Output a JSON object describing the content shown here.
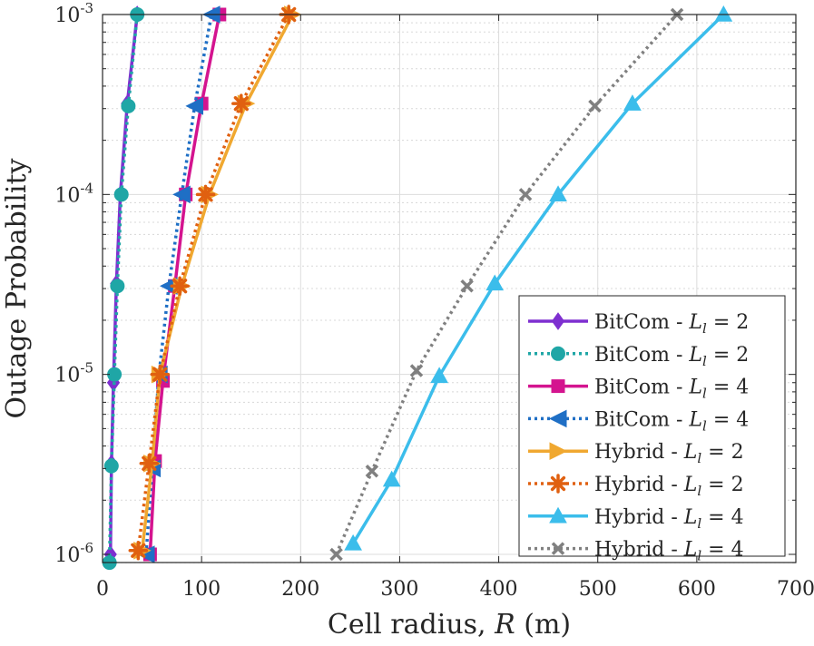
{
  "chart_data": {
    "type": "line",
    "title": "",
    "xlabel": {
      "main": "Cell radius,",
      "var": "R",
      "unit": "(m)"
    },
    "ylabel": "Outage Probability",
    "xlim": [
      0,
      700
    ],
    "ylim": [
      8.5e-07,
      0.001
    ],
    "yscale": "log",
    "grid": true,
    "legend_position": "bottom-right",
    "xticks": [
      0,
      100,
      200,
      300,
      400,
      500,
      600,
      700
    ],
    "yticks": [
      {
        "value": 1e-06,
        "exp": "-6"
      },
      {
        "value": 1e-05,
        "exp": "-5"
      },
      {
        "value": 0.0001,
        "exp": "-4"
      },
      {
        "value": 0.001,
        "exp": "-3"
      }
    ],
    "series": [
      {
        "name": "BitCom - ",
        "math": "L",
        "sub": "l",
        "eq": " = 2",
        "color": "#7E2FD0",
        "style": "solid",
        "marker": "diamond",
        "x": [
          8,
          9,
          11,
          14,
          18,
          25,
          35
        ],
        "y": [
          1e-06,
          3.2e-06,
          9e-06,
          3.2e-05,
          0.0001,
          0.00032,
          0.001
        ]
      },
      {
        "name": "BitCom - ",
        "math": "L",
        "sub": "l",
        "eq": " = 2",
        "color": "#1FA6A6",
        "style": "dotted",
        "marker": "circle",
        "x": [
          7,
          9,
          12,
          15,
          19,
          26,
          35
        ],
        "y": [
          9e-07,
          3.1e-06,
          1e-05,
          3.1e-05,
          0.0001,
          0.00031,
          0.001
        ]
      },
      {
        "name": "BitCom - ",
        "math": "L",
        "sub": "l",
        "eq": " = 4",
        "color": "#D4148F",
        "style": "solid",
        "marker": "square",
        "x": [
          48,
          53,
          61,
          73,
          84,
          100,
          118
        ],
        "y": [
          1e-06,
          3.3e-06,
          9.2e-06,
          3.1e-05,
          0.0001,
          0.00032,
          0.001
        ]
      },
      {
        "name": "BitCom - ",
        "math": "L",
        "sub": "l",
        "eq": " = 4",
        "color": "#1F6FC5",
        "style": "dotted",
        "marker": "triangle-left",
        "x": [
          44,
          50,
          57,
          67,
          80,
          93,
          110
        ],
        "y": [
          1e-06,
          3e-06,
          1e-05,
          3.1e-05,
          0.0001,
          0.00031,
          0.001
        ]
      },
      {
        "name": "Hybrid - ",
        "math": "L",
        "sub": "l",
        "eq": " = 2",
        "color": "#F0A830",
        "style": "solid",
        "marker": "triangle-right",
        "x": [
          40,
          50,
          58,
          80,
          108,
          145,
          192
        ],
        "y": [
          1.05e-06,
          3.2e-06,
          1e-05,
          3.1e-05,
          0.0001,
          0.00032,
          0.001
        ]
      },
      {
        "name": "Hybrid - ",
        "math": "L",
        "sub": "l",
        "eq": " = 2",
        "color": "#E06010",
        "style": "dotted",
        "marker": "asterisk",
        "x": [
          36,
          47,
          58,
          78,
          104,
          140,
          188
        ],
        "y": [
          1.05e-06,
          3.2e-06,
          1e-05,
          3.1e-05,
          0.0001,
          0.00032,
          0.001
        ]
      },
      {
        "name": "Hybrid - ",
        "math": "L",
        "sub": "l",
        "eq": " = 4",
        "color": "#3BBDEB",
        "style": "solid",
        "marker": "triangle-up",
        "x": [
          253,
          292,
          340,
          396,
          460,
          535,
          627
        ],
        "y": [
          1.15e-06,
          2.6e-06,
          9.8e-06,
          3.2e-05,
          0.0001,
          0.00032,
          0.001
        ]
      },
      {
        "name": "Hybrid - ",
        "math": "L",
        "sub": "l",
        "eq": " = 4",
        "color": "#808080",
        "style": "dotted",
        "marker": "cross",
        "x": [
          236,
          272,
          317,
          368,
          427,
          497,
          580
        ],
        "y": [
          1e-06,
          2.9e-06,
          1.05e-05,
          3.1e-05,
          0.0001,
          0.00031,
          0.001
        ]
      }
    ]
  }
}
